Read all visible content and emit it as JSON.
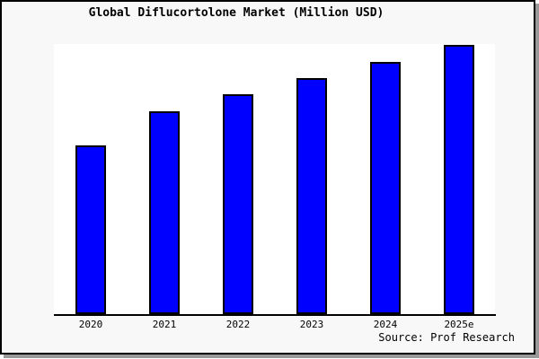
{
  "title": "Global Diflucortolone Market (Million USD)",
  "source_credit": "Source: Prof Research",
  "colors": {
    "bar_fill": "#0000ff",
    "bar_border": "#000000",
    "frame_background": "#f8f8f8",
    "plot_background": "#ffffff",
    "axis": "#000000",
    "frame_border": "#000000",
    "shadow": "#999999",
    "text": "#000000"
  },
  "chart_data": {
    "type": "bar",
    "title": "Global Diflucortolone Market (Million USD)",
    "categories": [
      "2020",
      "2021",
      "2022",
      "2023",
      "2024",
      "2025e"
    ],
    "values": [
      62.8,
      75.2,
      81.5,
      87.8,
      93.8,
      100
    ],
    "xlabel": "",
    "ylabel": "",
    "ylim": [
      0,
      100.5
    ],
    "value_note": "no y-axis or data labels shown; values estimated from bar heights normalized to 2025e = 100",
    "grid": false,
    "legend": "none",
    "source": "Source: Prof Research"
  }
}
